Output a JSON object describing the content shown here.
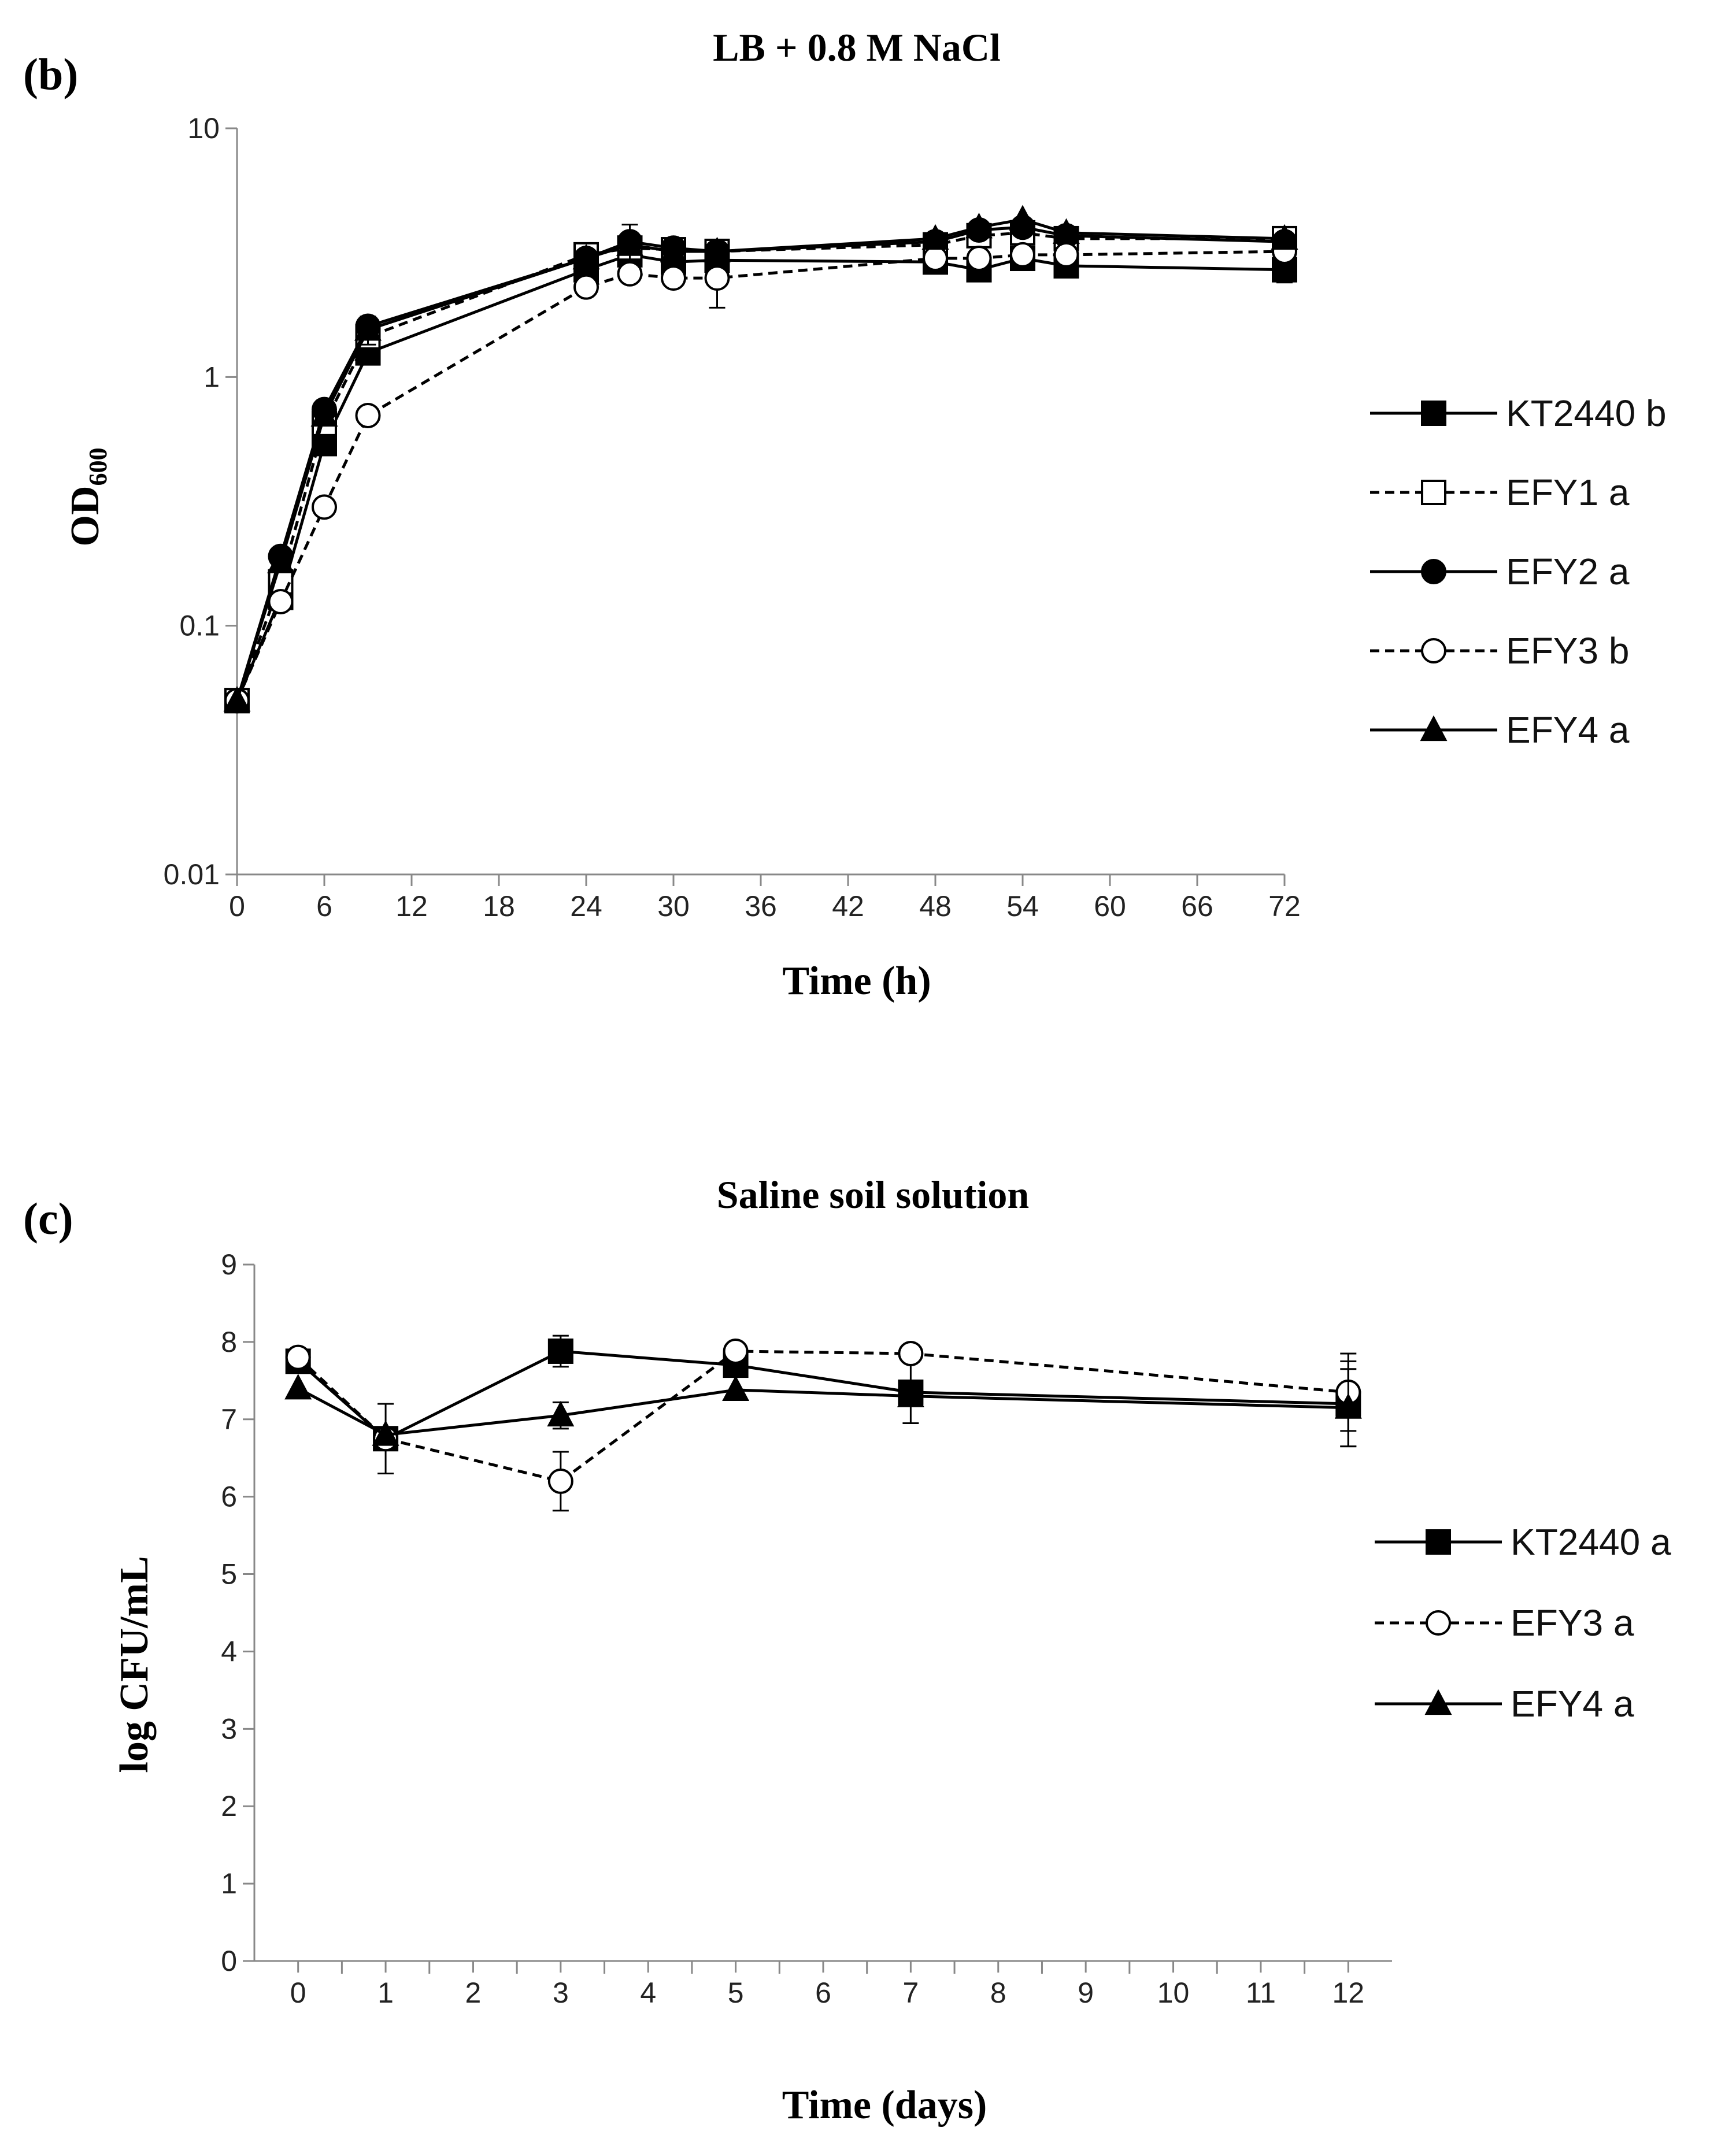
{
  "chart_data": [
    {
      "type": "line",
      "panel_label": "(b)",
      "title": "LB + 0.8 M NaCl",
      "xlabel": "Time (h)",
      "ylabel": "OD",
      "ylabel_sub": "600",
      "yscale": "log",
      "xlim": [
        0,
        72
      ],
      "ylim": [
        0.01,
        10
      ],
      "x_ticks": [
        0,
        6,
        12,
        18,
        24,
        30,
        36,
        42,
        48,
        54,
        60,
        66,
        72
      ],
      "y_ticks": [
        0.01,
        0.1,
        1,
        10
      ],
      "y_tick_labels": [
        "0.01",
        "0.1",
        "1",
        "10"
      ],
      "legend_position": "right",
      "series": [
        {
          "name": "KT2440 b",
          "marker": "square-filled",
          "dash": "solid",
          "x": [
            0,
            3,
            6,
            9,
            24,
            27,
            30,
            33,
            48,
            51,
            54,
            57,
            72
          ],
          "y": [
            0.05,
            0.13,
            0.54,
            1.25,
            2.7,
            3.1,
            2.9,
            2.95,
            2.9,
            2.7,
            3.0,
            2.8,
            2.7
          ],
          "err": [
            0,
            0,
            0,
            0,
            0,
            0,
            0,
            0,
            0,
            0,
            0,
            0,
            0.3
          ]
        },
        {
          "name": "EFY1 a",
          "marker": "square-open",
          "dash": "dashed",
          "x": [
            0,
            3,
            6,
            9,
            24,
            27,
            30,
            33,
            48,
            51,
            54,
            57,
            72
          ],
          "y": [
            0.05,
            0.15,
            0.65,
            1.45,
            3.1,
            3.3,
            3.25,
            3.2,
            3.4,
            3.7,
            3.8,
            3.6,
            3.6
          ],
          "err": [
            0,
            0,
            0,
            0,
            0,
            0,
            0,
            0,
            0,
            0,
            0,
            0,
            0
          ]
        },
        {
          "name": "EFY2 a",
          "marker": "circle-filled",
          "dash": "solid",
          "x": [
            0,
            3,
            6,
            9,
            24,
            27,
            30,
            33,
            48,
            51,
            54,
            57,
            72
          ],
          "y": [
            0.05,
            0.19,
            0.74,
            1.6,
            3.0,
            3.5,
            3.3,
            3.2,
            3.5,
            3.9,
            4.0,
            3.7,
            3.5
          ],
          "err": [
            0,
            0,
            0,
            0,
            0,
            0.6,
            0,
            0,
            0,
            0,
            0,
            0,
            0
          ]
        },
        {
          "name": "EFY3 b",
          "marker": "circle-open",
          "dash": "dashed",
          "x": [
            0,
            3,
            6,
            9,
            24,
            27,
            30,
            33,
            48,
            51,
            54,
            57,
            72
          ],
          "y": [
            0.05,
            0.125,
            0.3,
            0.7,
            2.3,
            2.6,
            2.5,
            2.5,
            3.0,
            3.0,
            3.1,
            3.1,
            3.2
          ],
          "err": [
            0,
            0,
            0,
            0,
            0,
            0,
            0,
            0.6,
            0,
            0,
            0,
            0,
            0
          ]
        },
        {
          "name": "EFY4 a",
          "marker": "triangle-filled",
          "dash": "solid",
          "x": [
            0,
            3,
            6,
            9,
            24,
            27,
            30,
            33,
            48,
            51,
            54,
            57,
            72
          ],
          "y": [
            0.05,
            0.18,
            0.7,
            1.55,
            3.0,
            3.4,
            3.2,
            3.2,
            3.6,
            4.0,
            4.3,
            3.8,
            3.6
          ],
          "err": [
            0,
            0,
            0,
            0.2,
            0,
            0,
            0,
            0,
            0,
            0,
            0,
            0,
            0
          ]
        }
      ]
    },
    {
      "type": "line",
      "panel_label": "(c)",
      "title": "Saline soil solution",
      "xlabel": "Time (days)",
      "ylabel": "log CFU/mL",
      "xlim": [
        0,
        12
      ],
      "ylim": [
        0,
        9
      ],
      "x_ticks": [
        0,
        1,
        2,
        3,
        4,
        5,
        6,
        7,
        8,
        9,
        10,
        11,
        12
      ],
      "x_tick_labels": [
        "0",
        "1",
        "2",
        "3",
        "4",
        "5",
        "6",
        "7",
        "8",
        "9",
        "10",
        "11",
        "12"
      ],
      "y_ticks": [
        0,
        1,
        2,
        3,
        4,
        5,
        6,
        7,
        8,
        9
      ],
      "y_tick_labels": [
        "0",
        "1",
        "2",
        "3",
        "4",
        "5",
        "6",
        "7",
        "8",
        "9"
      ],
      "legend_position": "right",
      "series": [
        {
          "name": "KT2440 a",
          "marker": "square-filled",
          "dash": "solid",
          "x": [
            0,
            1,
            3,
            5,
            7,
            12
          ],
          "y": [
            7.75,
            6.75,
            7.88,
            7.7,
            7.35,
            7.2
          ],
          "err": [
            0,
            0.45,
            0.2,
            0,
            0.4,
            0.55
          ]
        },
        {
          "name": "EFY3 a",
          "marker": "circle-open",
          "dash": "dashed",
          "x": [
            0,
            1,
            3,
            5,
            7,
            12
          ],
          "y": [
            7.8,
            6.75,
            6.2,
            7.88,
            7.85,
            7.35
          ],
          "err": [
            0,
            0,
            0.38,
            0,
            0,
            0.5
          ]
        },
        {
          "name": "EFY4 a",
          "marker": "triangle-filled",
          "dash": "solid",
          "x": [
            0,
            1,
            3,
            5,
            7,
            12
          ],
          "y": [
            7.4,
            6.8,
            7.05,
            7.38,
            7.3,
            7.15
          ],
          "err": [
            0,
            0,
            0.17,
            0,
            0,
            0.5
          ]
        }
      ]
    }
  ]
}
